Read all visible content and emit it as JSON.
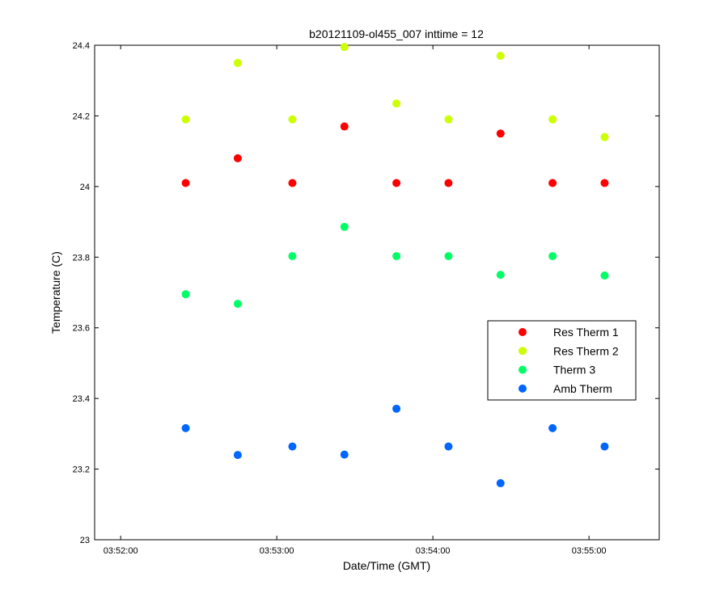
{
  "chart_data": {
    "type": "scatter",
    "title": "b20121109-ol455_007 inttime = 12",
    "xlabel": "Date/Time (GMT)",
    "ylabel": "Temperature (C)",
    "xlim": [
      "03:51:50",
      "03:55:27"
    ],
    "ylim": [
      23,
      24.4
    ],
    "xticks": [
      "03:52:00",
      "03:53:00",
      "03:54:00",
      "03:55:00"
    ],
    "yticks": [
      "23",
      "23.2",
      "23.4",
      "23.6",
      "23.8",
      "24",
      "24.2",
      "24.4"
    ],
    "grid": false,
    "legend_position": "right",
    "x": [
      "03:52:25",
      "03:52:45",
      "03:53:06",
      "03:53:26",
      "03:53:46",
      "03:54:06",
      "03:54:26",
      "03:54:46",
      "03:55:06"
    ],
    "series": [
      {
        "name": "Res Therm 1",
        "color": "#ff0000",
        "values": [
          24.01,
          24.08,
          24.01,
          24.17,
          24.01,
          24.01,
          24.15,
          24.01,
          24.01
        ]
      },
      {
        "name": "Res Therm 2",
        "color": "#ccff00",
        "values": [
          24.19,
          24.35,
          24.19,
          24.395,
          24.235,
          24.19,
          24.37,
          24.19,
          24.14
        ]
      },
      {
        "name": "Therm 3",
        "color": "#00ff66",
        "values": [
          23.695,
          23.668,
          23.803,
          23.886,
          23.803,
          23.803,
          23.75,
          23.803,
          23.748
        ]
      },
      {
        "name": "Amb Therm",
        "color": "#0066ff",
        "values": [
          23.316,
          23.24,
          23.264,
          23.241,
          23.371,
          23.264,
          23.16,
          23.316,
          23.264
        ]
      }
    ]
  }
}
